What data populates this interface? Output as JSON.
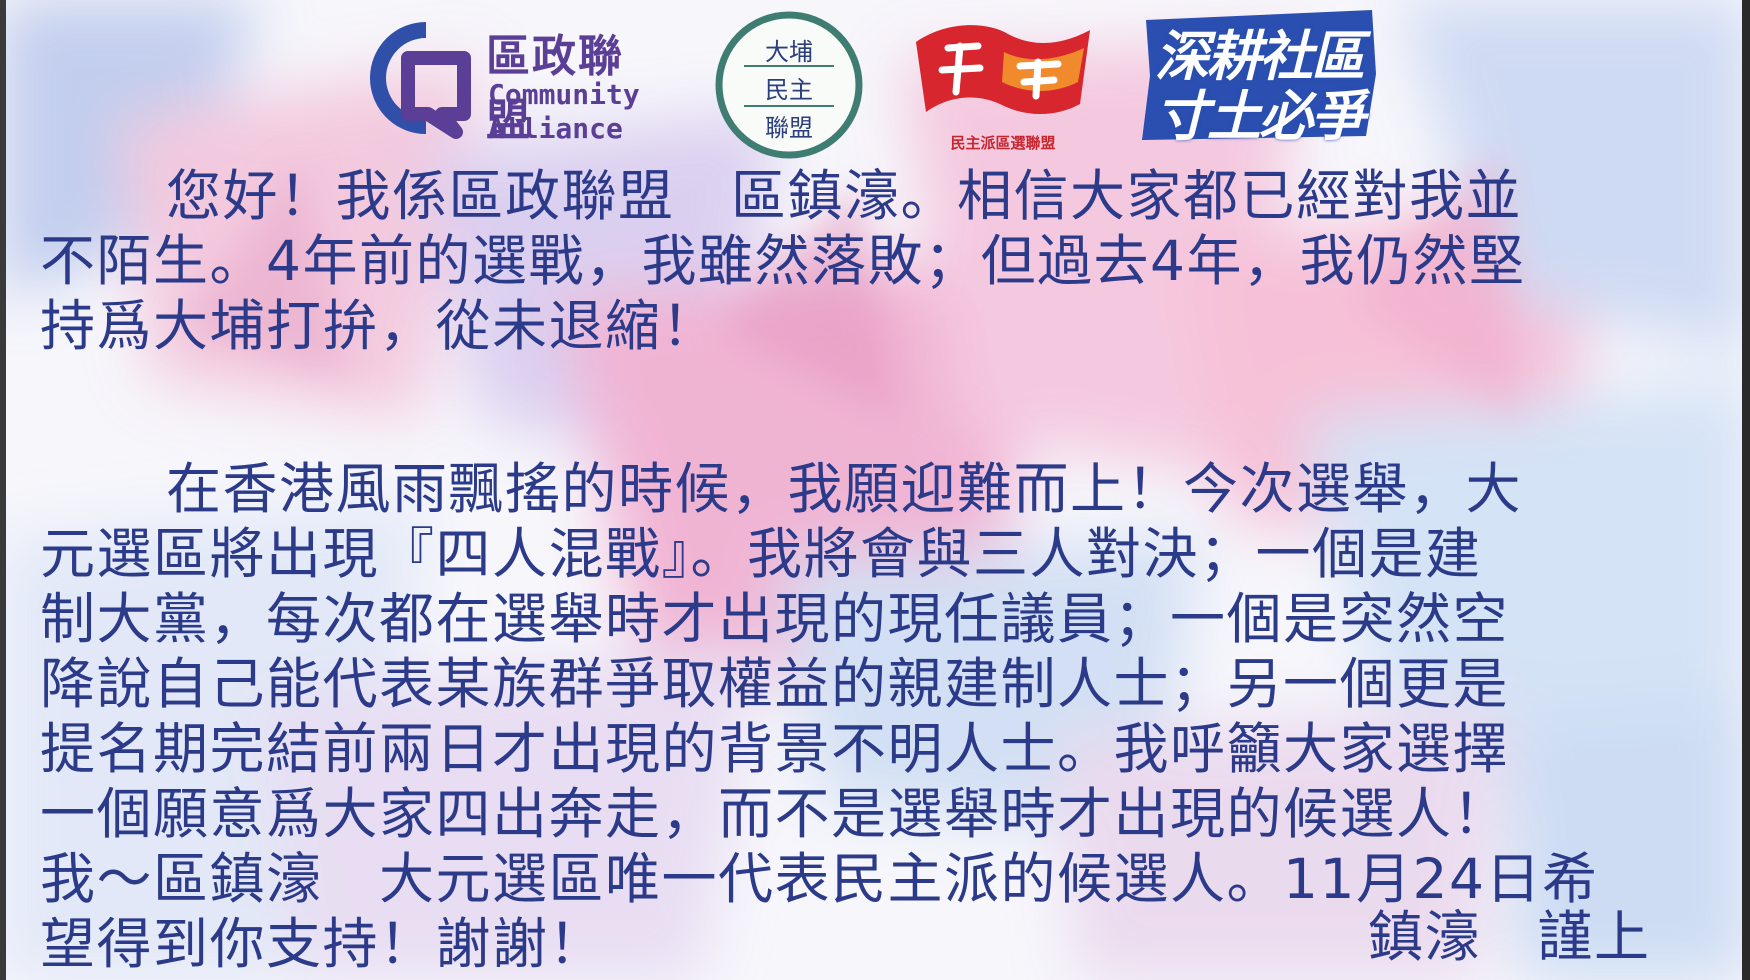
{
  "logos": {
    "community_alliance": {
      "zh": "區政聯盟",
      "en_line1": "Community",
      "en_line2": "Alliance"
    },
    "tai_po": {
      "line1": "大埔",
      "line2": "民主",
      "line3": "聯盟"
    },
    "democrats": {
      "caption": "民主派區選聯盟"
    },
    "slogan": {
      "line1": "深耕社區",
      "line2": "寸土必爭"
    }
  },
  "letter": {
    "p1": [
      "您好！我係區政聯盟　區鎮濠。相信大家都已經對我並",
      "不陌生。4年前的選戰，我雖然落敗；但過去4年，我仍然堅",
      "持爲大埔打拚，從未退縮！"
    ],
    "p2": [
      "在香港風雨飄搖的時候，我願迎難而上！今次選舉，大",
      "元選區將出現『四人混戰』。我將會與三人對決；一個是建",
      "制大黨，每次都在選舉時才出現的現任議員；一個是突然空",
      "降說自己能代表某族群爭取權益的親建制人士；另一個更是",
      "提名期完結前兩日才出現的背景不明人士。我呼籲大家選擇",
      "一個願意爲大家四出奔走，而不是選舉時才出現的候選人！",
      "我～區鎮濠　大元選區唯一代表民主派的候選人。11月24日希",
      "望得到你支持！謝謝！"
    ],
    "signoff": "鎮濠　謹上"
  },
  "colors": {
    "text": "#2c3a8a",
    "ca_purple": "#5b3f97",
    "ca_blue": "#2f4fa8",
    "tp_green": "#3f7d72",
    "dem_red": "#d8262e",
    "dem_orange": "#f08a2c",
    "slogan_blue": "#2a4fb0"
  }
}
